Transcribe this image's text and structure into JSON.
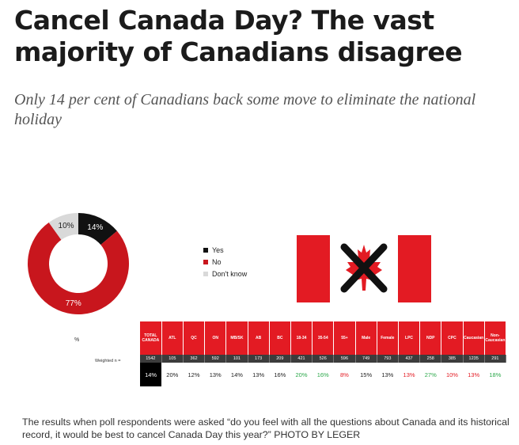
{
  "article": {
    "headline": "Cancel Canada Day? The vast majority of Canadians disagree",
    "deck": "Only 14 per cent of Canadians back some move to eliminate the national holiday",
    "caption": "The results when poll respondents were asked “do you feel with all the questions about Canada and its historical record, it would be best to cancel Canada Day this year?” PHOTO BY LEGER"
  },
  "colors": {
    "red": "#e31b23",
    "black": "#111111",
    "grey": "#d9d9d9",
    "green": "#2ca84b"
  },
  "chart_data": [
    {
      "type": "pie",
      "donut": true,
      "categories": [
        "Yes",
        "No",
        "Don't know"
      ],
      "values": [
        14,
        77,
        10
      ],
      "labels": [
        "14%",
        "77%",
        "10%"
      ],
      "colors": [
        "#111111",
        "#c8161d",
        "#d9d9d9"
      ],
      "legend": {
        "position": "right",
        "entries": [
          "Yes",
          "No",
          "Don't know"
        ]
      }
    },
    {
      "type": "table",
      "corner_label": "%",
      "row_labels": [
        "Weighted n ="
      ],
      "columns": [
        "TOTAL CANADA",
        "ATL",
        "QC",
        "ON",
        "MB/SK",
        "AB",
        "BC",
        "18-34",
        "35-54",
        "55+",
        "Male",
        "Female",
        "LPC",
        "NDP",
        "CPC",
        "Caucasian",
        "Non-Caucasian"
      ],
      "weighted_n": [
        "1542",
        "105",
        "362",
        "592",
        "101",
        "173",
        "209",
        "421",
        "526",
        "596",
        "749",
        "793",
        "437",
        "258",
        "385",
        "1235",
        "291"
      ],
      "values": [
        "14%",
        "20%",
        "12%",
        "13%",
        "14%",
        "13%",
        "16%",
        "20%",
        "16%",
        "8%",
        "15%",
        "13%",
        "13%",
        "27%",
        "10%",
        "13%",
        "18%"
      ],
      "value_styles": [
        "total",
        "",
        "",
        "",
        "",
        "",
        "",
        "high",
        "high",
        "low",
        "",
        "",
        "low",
        "high",
        "low",
        "low",
        "high"
      ]
    }
  ],
  "flag": {
    "icon": "canada-flag-crossed-out-icon"
  }
}
